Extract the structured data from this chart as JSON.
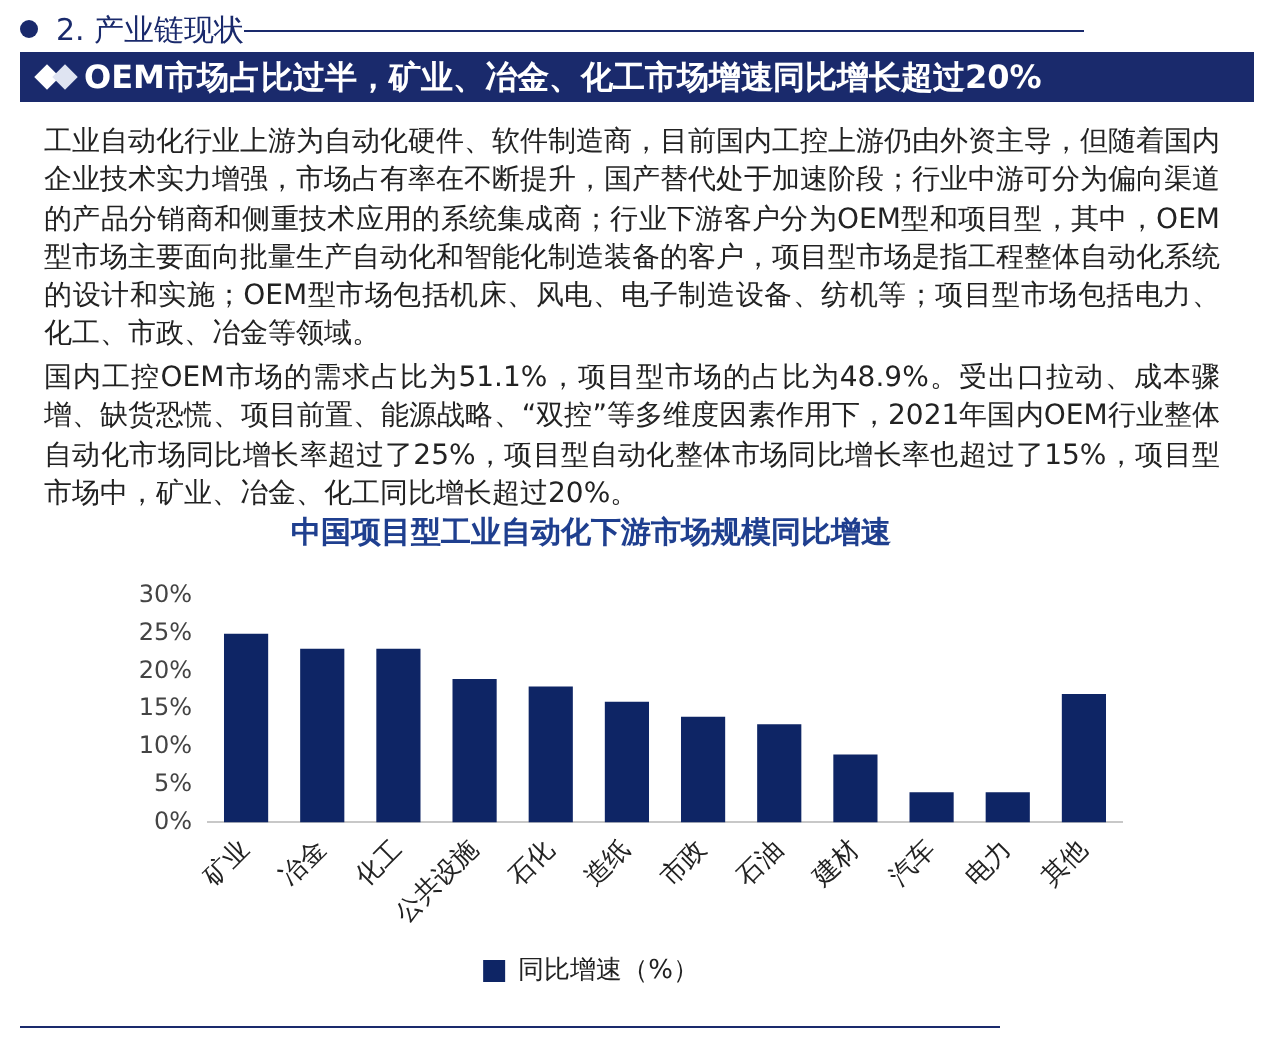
{
  "chart_data": {
    "type": "bar",
    "title": "中国项目型工业自动化下游市场规模同比增速",
    "annotations": [
      "2. 产业链现状",
      "OEM市场占比过半，矿业、冶金、化工市场增速同比增长超过20%",
      "工业自动化行业上游为自动化硬件、软件制造商，目前国内工控上游仍由外资主导，但随着国内企业技术实力增强，市场占有率在不断提升，国产替代处于加速阶段；行业中游可分为偏向渠道的产品分销商和侧重技术应用的系统集成商；行业下游客户分为OEM型和项目型，其中，OEM型市场主要面向批量生产自动化和智能化制造装备的客户，项目型市场是指工程整体自动化系统的设计和实施；OEM型市场包括机床、风电、电子制造设备、纺机等；项目型市场包括电力、化工、市政、冶金等领域。",
      "国内工控OEM市场的需求占比为51.1%，项目型市场的占比为48.9%。受出口拉动、成本骤增、缺货恐慌、项目前置、能源战略、“双控”等多维度因素作用下，2021年国内OEM行业整体自动化市场同比增长率超过了25%，项目型自动化整体市场同比增长率也超过了15%，项目型市场中，矿业、冶金、化工同比增长超过20%。"
    ],
    "categories": [
      "矿业",
      "冶金",
      "化工",
      "公共设施",
      "石化",
      "造纸",
      "市政",
      "石油",
      "建材",
      "汽车",
      "电力",
      "其他"
    ],
    "series": [
      {
        "name": "同比增速（%）",
        "color": "#0e2565",
        "values": [
          25,
          23,
          23,
          19,
          18,
          16,
          14,
          13,
          9,
          4,
          4,
          17
        ]
      }
    ],
    "ylim": [
      0,
      30
    ],
    "yticks": [
      {
        "value": 0,
        "label": "0%"
      },
      {
        "value": 5,
        "label": "5%"
      },
      {
        "value": 10,
        "label": "10%"
      },
      {
        "value": 15,
        "label": "15%"
      },
      {
        "value": 20,
        "label": "20%"
      },
      {
        "value": 25,
        "label": "25%"
      },
      {
        "value": 30,
        "label": "30%"
      }
    ],
    "grid": false,
    "legend": "bottom"
  }
}
